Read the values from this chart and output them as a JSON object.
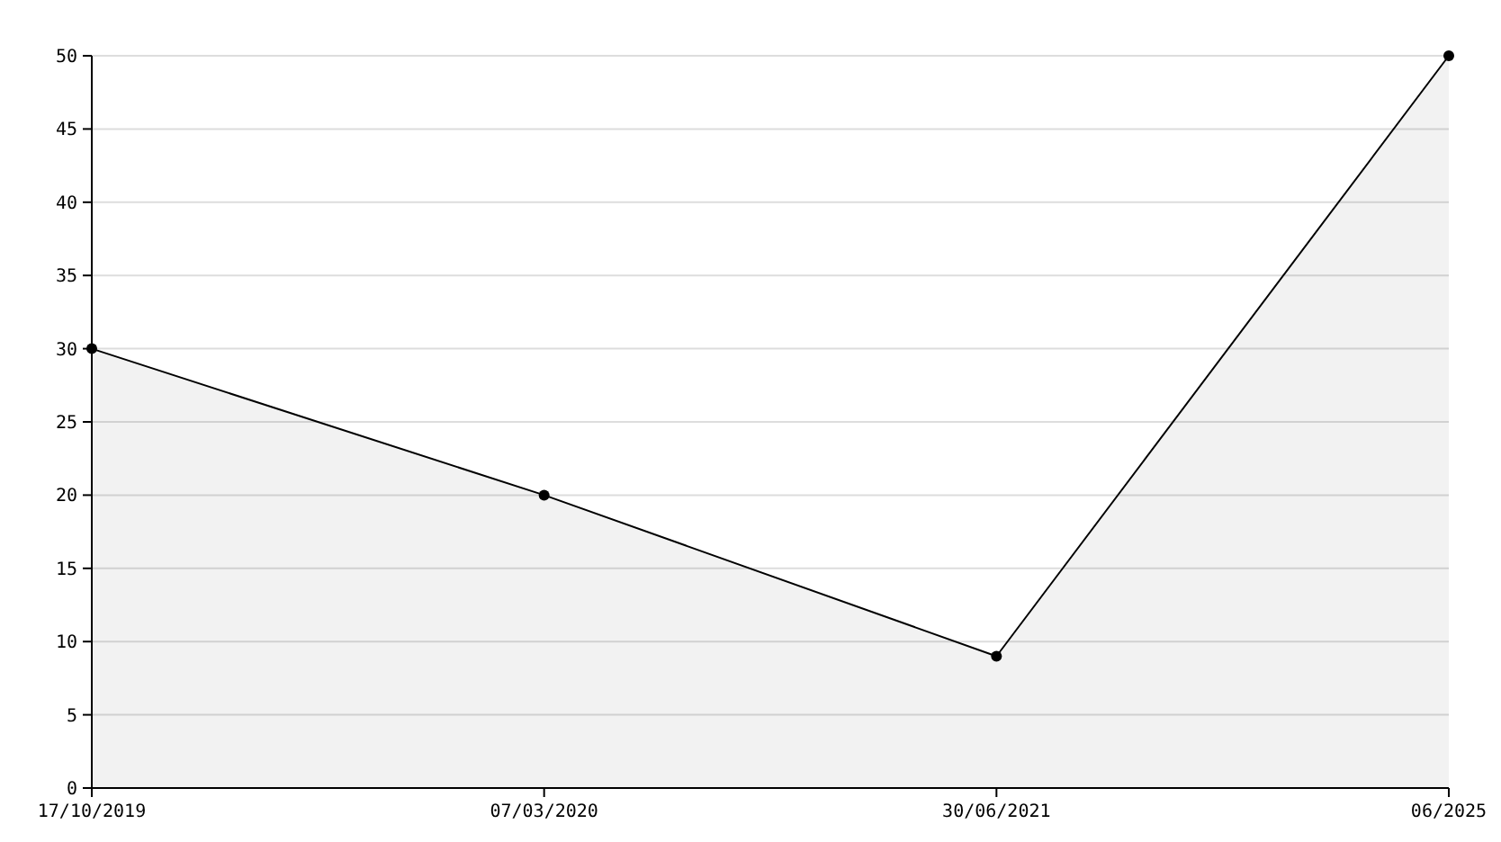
{
  "chart_data": {
    "type": "area",
    "categories": [
      "17/10/2019",
      "07/03/2020",
      "30/06/2021",
      "06/2025"
    ],
    "series": [
      {
        "color": "#000000",
        "values": [
          30,
          20,
          9,
          50
        ]
      }
    ],
    "ylim": [
      0,
      50
    ],
    "yticks": [
      0,
      5,
      10,
      15,
      20,
      25,
      30,
      35,
      40,
      45,
      50
    ],
    "grid": "y",
    "marker": "circle",
    "line_style": "solid"
  }
}
